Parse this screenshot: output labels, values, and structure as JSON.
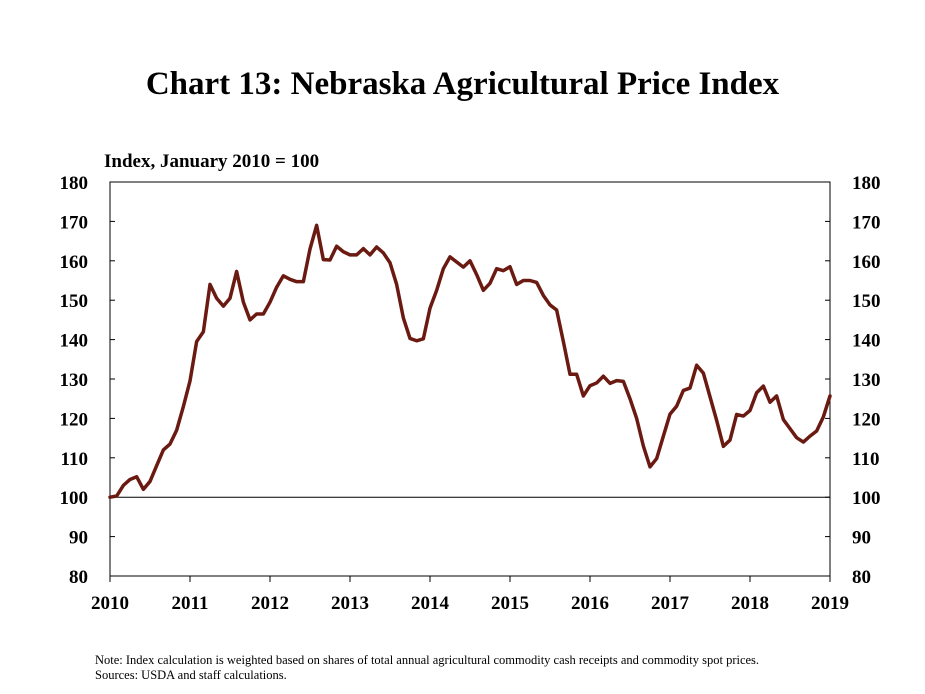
{
  "chart_data": {
    "type": "line",
    "title": "Chart 13: Nebraska Agricultural Price Index",
    "ylabel": "Index, January 2010 = 100",
    "xlabel": "",
    "ylim": [
      80,
      180
    ],
    "yticks": [
      80,
      90,
      100,
      110,
      120,
      130,
      140,
      150,
      160,
      170,
      180
    ],
    "xtick_labels": [
      "2010",
      "2011",
      "2012",
      "2013",
      "2014",
      "2015",
      "2016",
      "2017",
      "2018",
      "2019"
    ],
    "reference_line": 100,
    "grid": false,
    "line_color": "#6b1a12",
    "series": [
      {
        "x": [
          2010.0,
          2010.083,
          2010.167,
          2010.25,
          2010.333,
          2010.417,
          2010.5,
          2010.583,
          2010.667,
          2010.75,
          2010.833,
          2010.917,
          2011.0,
          2011.083,
          2011.167,
          2011.25,
          2011.333,
          2011.417,
          2011.5,
          2011.583,
          2011.667,
          2011.75,
          2011.833,
          2011.917,
          2012.0,
          2012.083,
          2012.167,
          2012.25,
          2012.333,
          2012.417,
          2012.5,
          2012.583,
          2012.667,
          2012.75,
          2012.833,
          2012.917,
          2013.0,
          2013.083,
          2013.167,
          2013.25,
          2013.333,
          2013.417,
          2013.5,
          2013.583,
          2013.667,
          2013.75,
          2013.833,
          2013.917,
          2014.0,
          2014.083,
          2014.167,
          2014.25,
          2014.333,
          2014.417,
          2014.5,
          2014.583,
          2014.667,
          2014.75,
          2014.833,
          2014.917,
          2015.0,
          2015.083,
          2015.167,
          2015.25,
          2015.333,
          2015.417,
          2015.5,
          2015.583,
          2015.667,
          2015.75,
          2015.833,
          2015.917,
          2016.0,
          2016.083,
          2016.167,
          2016.25,
          2016.333,
          2016.417,
          2016.5,
          2016.583,
          2016.667,
          2016.75,
          2016.833,
          2016.917,
          2017.0,
          2017.083,
          2017.167,
          2017.25,
          2017.333,
          2017.417,
          2017.5,
          2017.583,
          2017.667,
          2017.75,
          2017.833,
          2017.917,
          2018.0,
          2018.083,
          2018.167,
          2018.25,
          2018.333,
          2018.417,
          2018.5,
          2018.583,
          2018.667,
          2018.75,
          2018.833,
          2018.917,
          2019.0
        ],
        "y": [
          100,
          100.3,
          103,
          104.5,
          105.2,
          102,
          104,
          108,
          112,
          113.5,
          117,
          123,
          129.5,
          139.5,
          142,
          154,
          150.5,
          148.5,
          150.5,
          157.3,
          149.5,
          145,
          146.5,
          146.5,
          149.5,
          153.3,
          156.2,
          155.3,
          154.7,
          154.7,
          163,
          169,
          160.3,
          160.2,
          163.7,
          162.3,
          161.5,
          161.5,
          163.1,
          161.5,
          163.5,
          162,
          159.5,
          154,
          145.5,
          140.3,
          139.7,
          140.2,
          148,
          152.5,
          158,
          161,
          159.7,
          158.4,
          160,
          156.5,
          152.5,
          154.3,
          158,
          157.5,
          158.5,
          154,
          155,
          155,
          154.5,
          151.2,
          148.8,
          147.5,
          139.5,
          131.2,
          131.2,
          125.7,
          128.3,
          129,
          130.7,
          128.9,
          129.6,
          129.4,
          125,
          120,
          113,
          107.7,
          109.8,
          115.5,
          121.1,
          123.1,
          127.1,
          127.7,
          133.5,
          131.5,
          125.5,
          119.5,
          112.9,
          114.5,
          121,
          120.6,
          122,
          126.5,
          128.2,
          124.1,
          125.7,
          119.7,
          117.4,
          115.1,
          114,
          115.5,
          116.8,
          120.4,
          125.7
        ]
      }
    ]
  },
  "footnotes": {
    "note": "Note: Index calculation is weighted based on shares of total annual agricultural commodity cash receipts and commodity spot prices.",
    "sources": "Sources: USDA and staff calculations."
  }
}
